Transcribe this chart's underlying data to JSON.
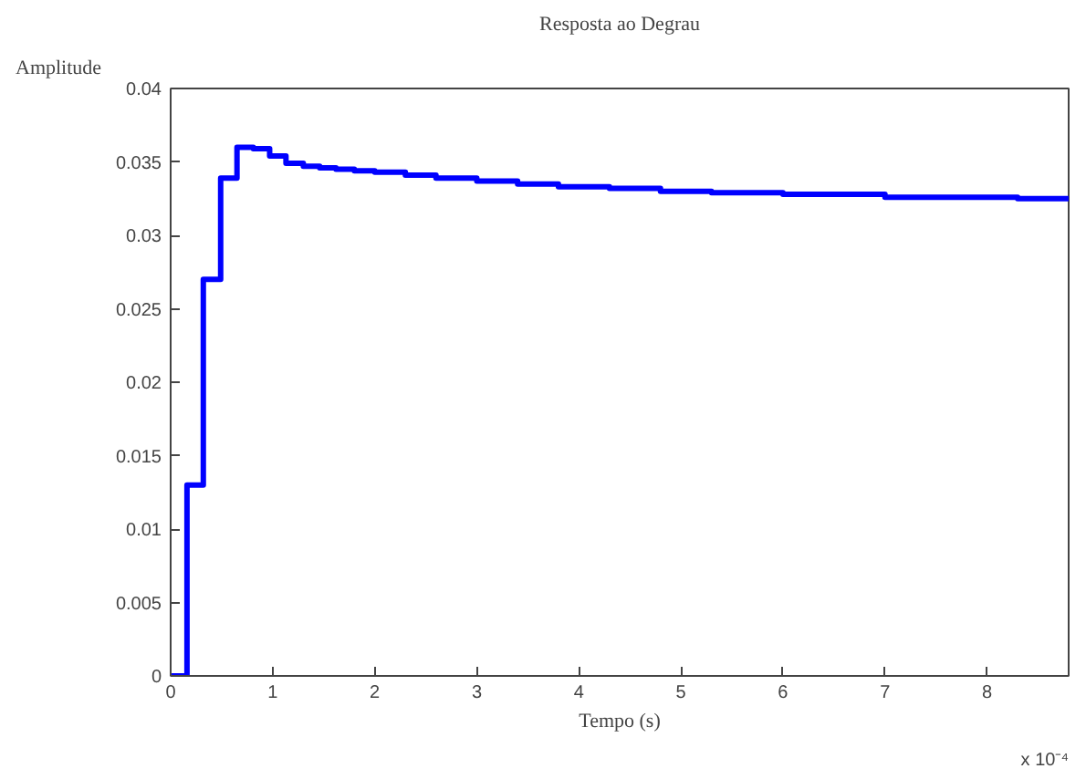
{
  "chart_data": {
    "type": "step",
    "title": "Resposta ao Degrau",
    "xlabel": "Tempo (s)",
    "ylabel": "Amplitude",
    "annotations": [
      "x 10⁻⁴"
    ],
    "x": [
      0,
      0.16,
      0.32,
      0.49,
      0.65,
      0.81,
      0.97,
      1.13,
      1.3,
      1.46,
      1.62,
      1.8,
      2.0,
      2.3,
      2.6,
      3.0,
      3.4,
      3.8,
      4.3,
      4.8,
      5.3,
      6.0,
      7.0,
      8.3,
      8.8
    ],
    "series": [
      {
        "color": "#0000ff",
        "values": [
          0,
          0.013,
          0.027,
          0.0339,
          0.036,
          0.0359,
          0.0354,
          0.0349,
          0.0347,
          0.0346,
          0.0345,
          0.0344,
          0.0343,
          0.0341,
          0.0339,
          0.0337,
          0.0335,
          0.0333,
          0.0332,
          0.033,
          0.0329,
          0.0328,
          0.0326,
          0.0325,
          0.0324
        ]
      }
    ],
    "xlim": [
      0,
      8.8
    ],
    "ylim": [
      0,
      0.04
    ],
    "xticks": [
      0,
      1,
      2,
      3,
      4,
      5,
      6,
      7,
      8
    ],
    "yticks": [
      0,
      0.005,
      0.01,
      0.015,
      0.02,
      0.025,
      0.03,
      0.035,
      0.04
    ],
    "grid": false
  }
}
